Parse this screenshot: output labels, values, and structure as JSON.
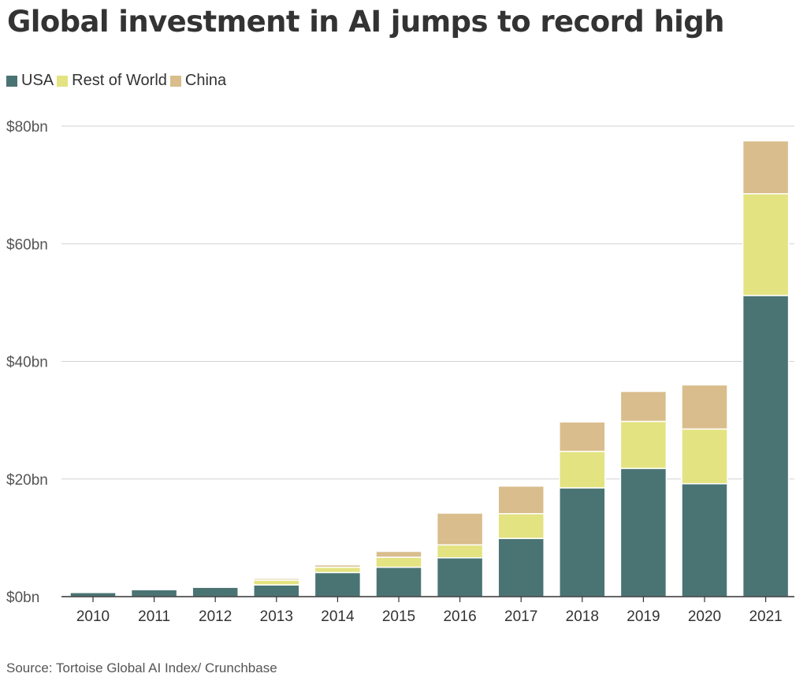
{
  "chart_data": {
    "type": "bar",
    "stacked": true,
    "title": "Global investment in AI jumps to record high",
    "xlabel": "",
    "ylabel": "",
    "categories": [
      "2010",
      "2011",
      "2012",
      "2013",
      "2014",
      "2015",
      "2016",
      "2017",
      "2018",
      "2019",
      "2020",
      "2021"
    ],
    "series": [
      {
        "name": "USA",
        "color": "#4a7473",
        "values": [
          0.7,
          1.2,
          1.6,
          2.0,
          4.1,
          5.0,
          6.6,
          9.9,
          18.5,
          21.8,
          19.2,
          51.2
        ]
      },
      {
        "name": "Rest of World",
        "color": "#e3e381",
        "values": [
          0.1,
          0.1,
          0.2,
          0.8,
          0.9,
          1.7,
          2.2,
          4.2,
          6.2,
          8.0,
          9.3,
          17.3
        ]
      },
      {
        "name": "China",
        "color": "#d9bd8c",
        "values": [
          0.1,
          0.1,
          0.1,
          0.3,
          0.4,
          1.0,
          5.4,
          4.7,
          5.0,
          5.1,
          7.5,
          9.0
        ]
      }
    ],
    "ylim": [
      0,
      80
    ],
    "yticks": [
      0,
      20,
      40,
      60,
      80
    ],
    "ytick_labels": [
      "$0bn",
      "$20bn",
      "$40bn",
      "$60bn",
      "$80bn"
    ],
    "grid": true,
    "legend_position": "top-left",
    "source": "Source: Tortoise Global AI Index/ Crunchbase"
  }
}
